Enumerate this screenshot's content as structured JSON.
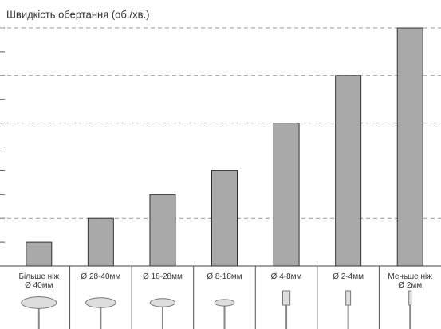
{
  "chart_data": {
    "type": "bar",
    "title": "Швидкість обертання (об./хв.)",
    "categories": [
      "Більше ніж\nØ 40мм",
      "Ø 28-40мм",
      "Ø 18-28мм",
      "Ø 8-18мм",
      "Ø 4-8мм",
      "Ø 2-4мм",
      "Меньше ніж\nØ 2мм"
    ],
    "values": [
      1,
      2,
      3,
      4,
      6,
      8,
      10
    ],
    "color": "#a9a9a9",
    "ylim": [
      0,
      10
    ],
    "yticks": [
      0,
      1,
      2,
      3,
      4,
      5,
      6,
      7,
      8,
      9,
      10
    ],
    "grid_values": [
      2,
      6,
      8,
      10
    ]
  }
}
